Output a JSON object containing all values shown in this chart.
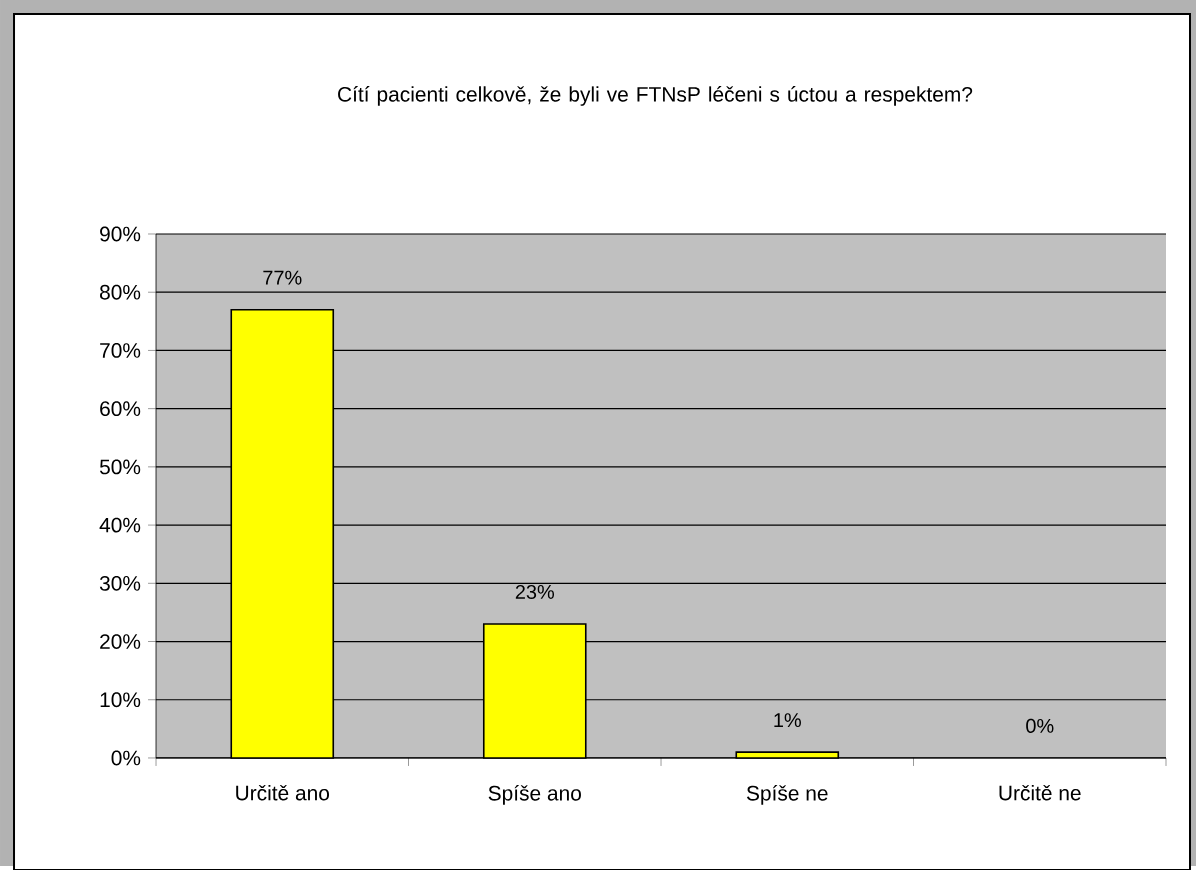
{
  "chart_data": {
    "type": "bar",
    "title": "Cítí pacienti celkově, že byli ve FTNsP léčeni s úctou a respektem?",
    "categories": [
      "Určitě ano",
      "Spíše ano",
      "Spíše ne",
      "Určitě ne"
    ],
    "values": [
      77,
      23,
      1,
      0
    ],
    "value_labels": [
      "77%",
      "23%",
      "1%",
      "0%"
    ],
    "color": "#ffff00",
    "ylim": [
      0,
      90
    ],
    "yticks": [
      {
        "value": 0,
        "label": "0%"
      },
      {
        "value": 10,
        "label": "10%"
      },
      {
        "value": 20,
        "label": "20%"
      },
      {
        "value": 30,
        "label": "30%"
      },
      {
        "value": 40,
        "label": "40%"
      },
      {
        "value": 50,
        "label": "50%"
      },
      {
        "value": 60,
        "label": "60%"
      },
      {
        "value": 70,
        "label": "70%"
      },
      {
        "value": 80,
        "label": "80%"
      },
      {
        "value": 90,
        "label": "90%"
      }
    ],
    "grid": "y"
  }
}
